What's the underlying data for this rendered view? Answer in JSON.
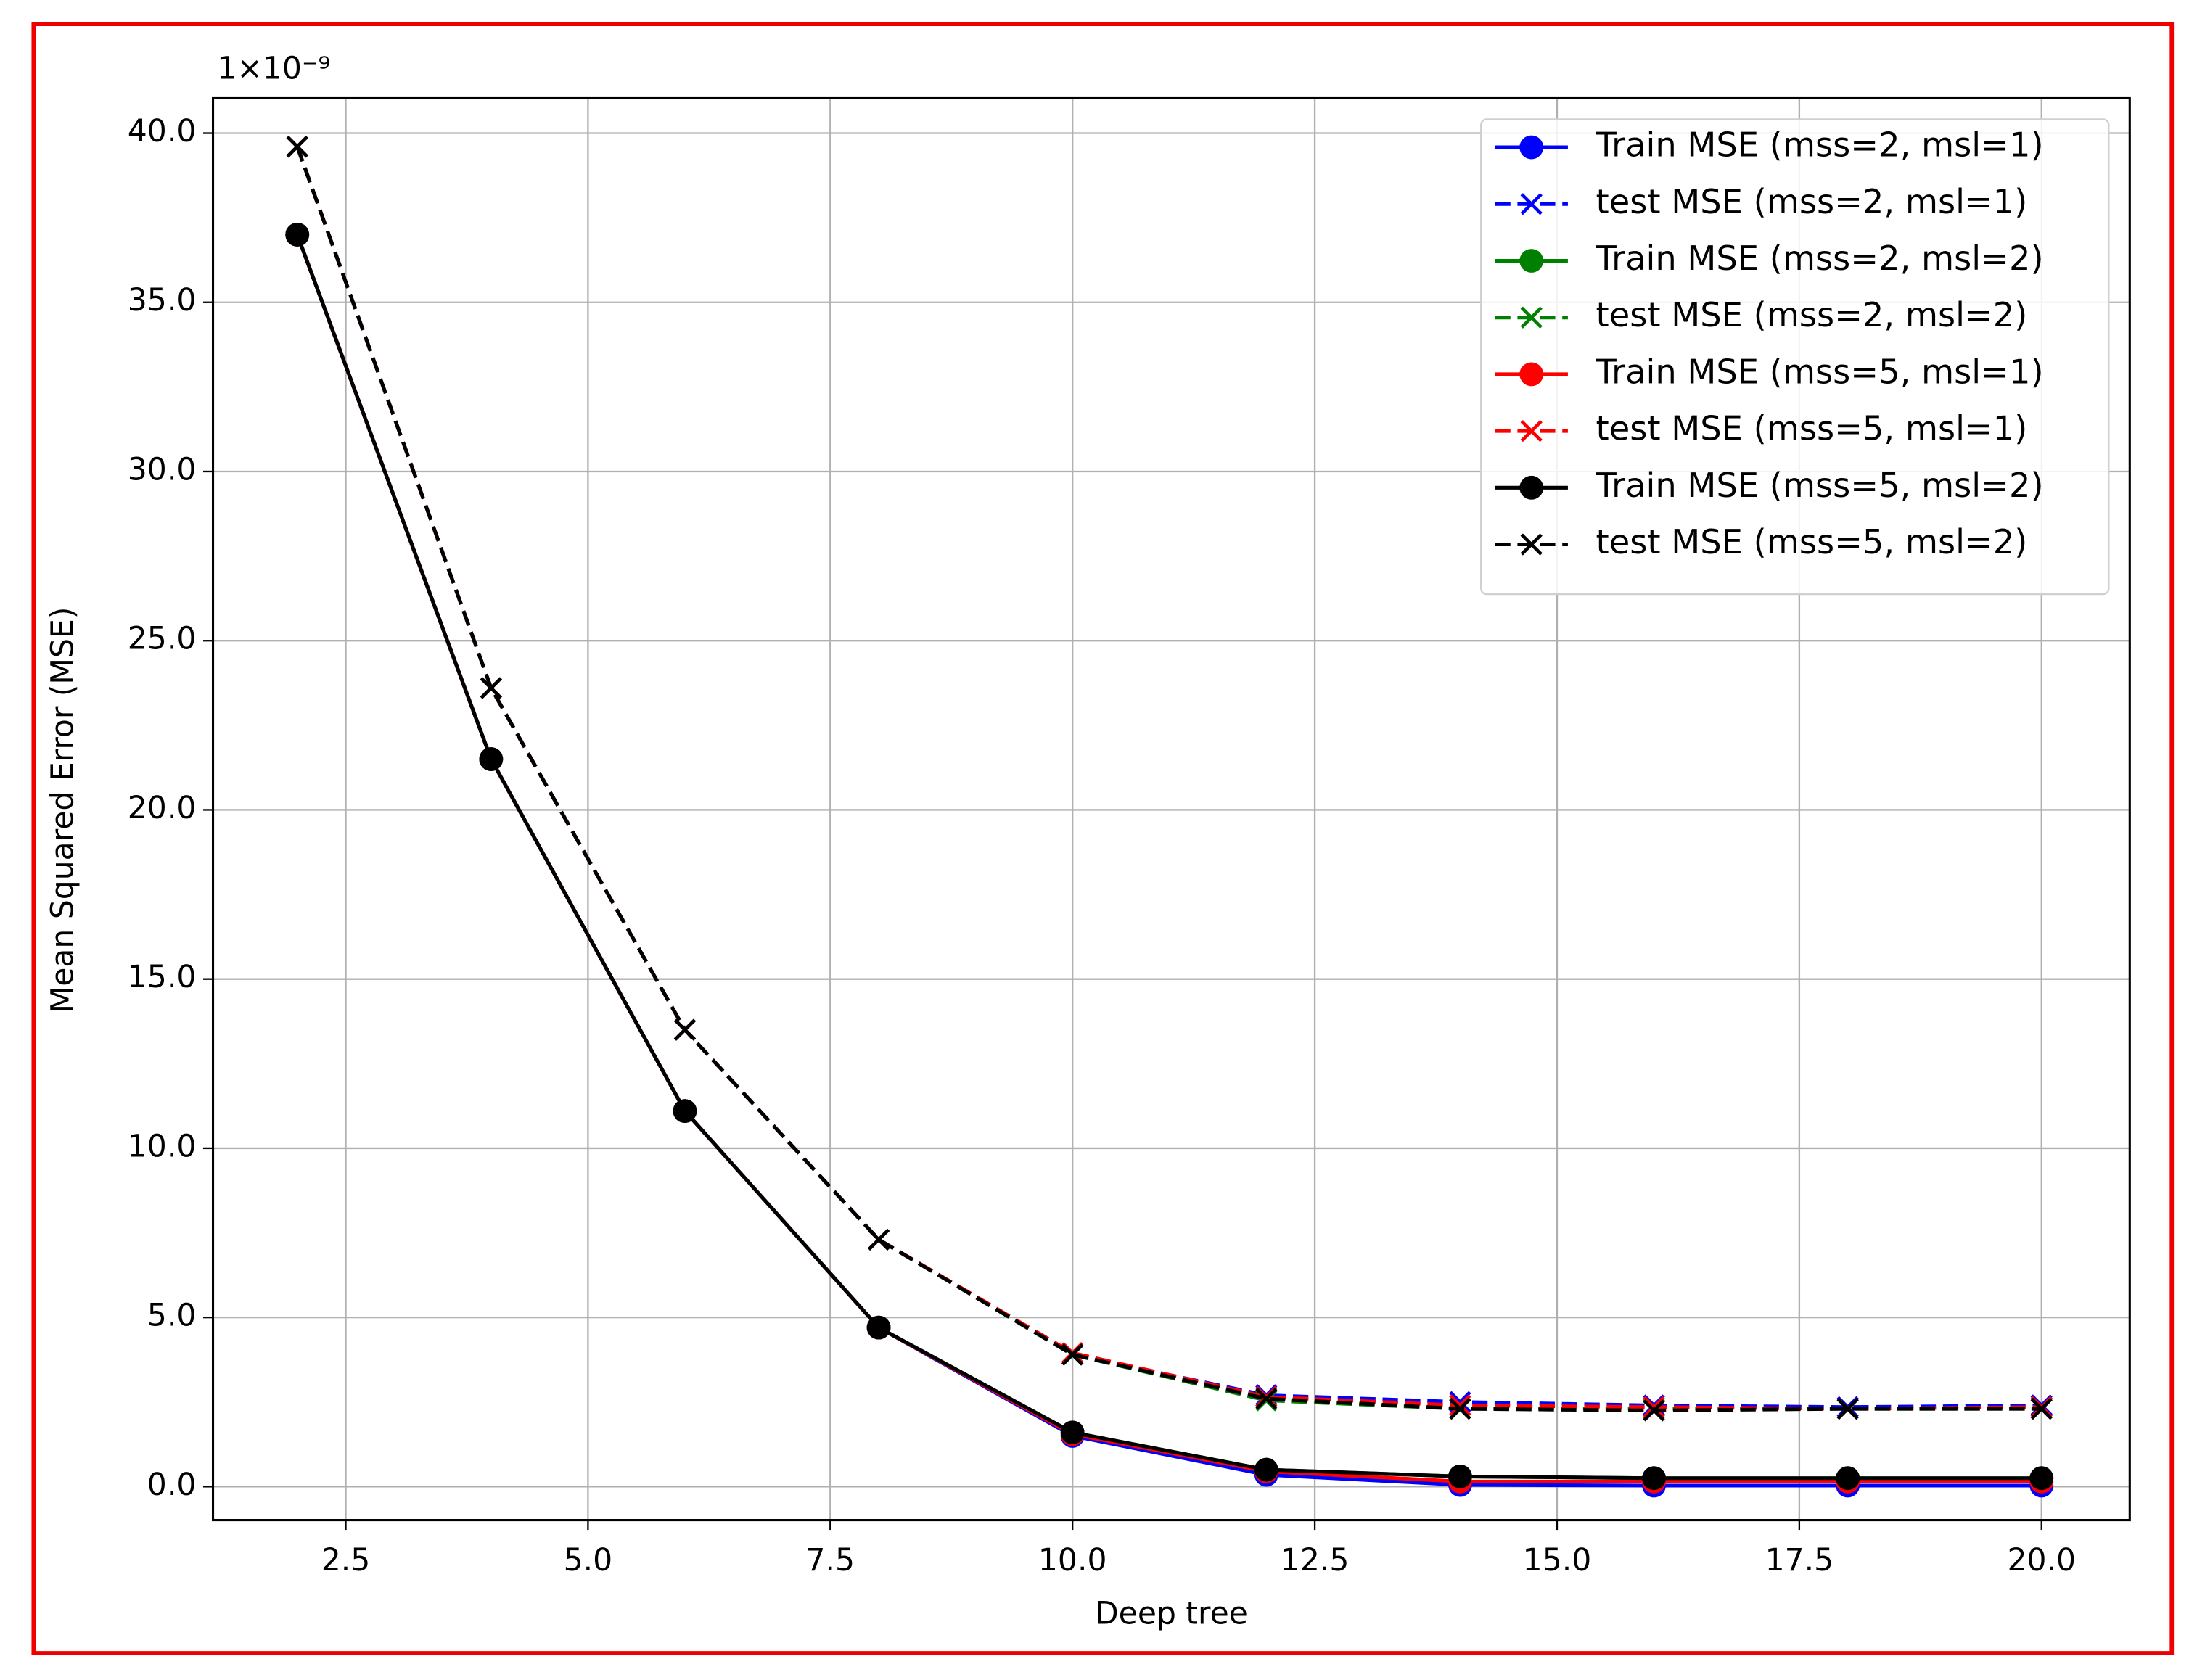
{
  "chart_data": {
    "type": "line",
    "x_label": "Deep tree",
    "y_label": "Mean Squared Error (MSE)",
    "y_offset_text": "1×10⁻⁹",
    "x": [
      2,
      4,
      6,
      8,
      10,
      12,
      14,
      16,
      18,
      20
    ],
    "xlim": [
      1.13,
      20.91
    ],
    "xticks": [
      2.5,
      {
        "value": 5,
        "label": "5.0"
      },
      7.5,
      {
        "value": 10,
        "label": "10.0"
      },
      12.5,
      {
        "value": 15,
        "label": "15.0"
      },
      17.5,
      {
        "value": 20,
        "label": "20.0"
      }
    ],
    "ylim": [
      -0.99,
      41.03
    ],
    "yticks": [
      {
        "value": 0,
        "label": "0.0"
      },
      {
        "value": 5,
        "label": "5.0"
      },
      {
        "value": 10,
        "label": "10.0"
      },
      {
        "value": 15,
        "label": "15.0"
      },
      {
        "value": 20,
        "label": "20.0"
      },
      {
        "value": 25,
        "label": "25.0"
      },
      {
        "value": 30,
        "label": "30.0"
      },
      {
        "value": 35,
        "label": "35.0"
      },
      {
        "value": 40,
        "label": "40.0"
      }
    ],
    "grid": true,
    "legend": "upper right",
    "series": [
      {
        "name": "Train MSE (mss=2, msl=1)",
        "color": "#0000ff",
        "linestyle": "solid",
        "marker": "o",
        "values": [
          37.0,
          21.5,
          11.1,
          4.7,
          1.5,
          0.35,
          0.05,
          0.03,
          0.03,
          0.03
        ]
      },
      {
        "name": "test MSE (mss=2, msl=1)",
        "color": "#0000ff",
        "linestyle": "dashed",
        "marker": "x",
        "values": [
          39.6,
          23.6,
          13.5,
          7.3,
          3.9,
          2.7,
          2.5,
          2.4,
          2.35,
          2.4
        ]
      },
      {
        "name": "Train MSE (mss=2, msl=2)",
        "color": "#008000",
        "linestyle": "solid",
        "marker": "o",
        "values": [
          37.0,
          21.5,
          11.1,
          4.7,
          1.6,
          0.5,
          0.3,
          0.25,
          0.25,
          0.25
        ]
      },
      {
        "name": "test MSE (mss=2, msl=2)",
        "color": "#008000",
        "linestyle": "dashed",
        "marker": "x",
        "values": [
          39.6,
          23.6,
          13.5,
          7.3,
          3.9,
          2.55,
          2.3,
          2.3,
          2.3,
          2.3
        ]
      },
      {
        "name": "Train MSE (mss=5, msl=1)",
        "color": "#ff0000",
        "linestyle": "solid",
        "marker": "o",
        "values": [
          37.0,
          21.5,
          11.1,
          4.7,
          1.55,
          0.45,
          0.15,
          0.15,
          0.15,
          0.15
        ]
      },
      {
        "name": "test MSE (mss=5, msl=1)",
        "color": "#ff0000",
        "linestyle": "dashed",
        "marker": "x",
        "values": [
          39.6,
          23.6,
          13.5,
          7.3,
          3.95,
          2.65,
          2.4,
          2.35,
          2.3,
          2.35
        ]
      },
      {
        "name": "Train MSE (mss=5, msl=2)",
        "color": "#000000",
        "linestyle": "solid",
        "marker": "o",
        "values": [
          37.0,
          21.5,
          11.1,
          4.7,
          1.6,
          0.5,
          0.3,
          0.25,
          0.25,
          0.25
        ]
      },
      {
        "name": "test MSE (mss=5, msl=2)",
        "color": "#000000",
        "linestyle": "dashed",
        "marker": "x",
        "values": [
          39.6,
          23.6,
          13.5,
          7.3,
          3.9,
          2.6,
          2.3,
          2.25,
          2.3,
          2.3
        ]
      }
    ]
  }
}
